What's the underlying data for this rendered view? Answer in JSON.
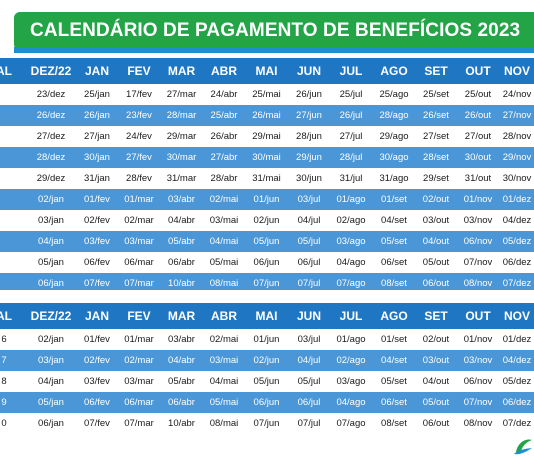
{
  "title": "CALENDÁRIO DE PAGAMENTO DE BENEFÍCIOS 2023",
  "colors": {
    "banner_green": "#22a447",
    "header_blue": "#1f77c4",
    "row_blue": "#4a96d6"
  },
  "table1": {
    "headers": [
      "AL",
      "DEZ/22",
      "JAN",
      "FEV",
      "MAR",
      "ABR",
      "MAI",
      "JUN",
      "JUL",
      "AGO",
      "SET",
      "OUT",
      "NOV"
    ],
    "rows": [
      [
        "",
        "23/dez",
        "25/jan",
        "17/fev",
        "27/mar",
        "24/abr",
        "25/mai",
        "26/jun",
        "25/jul",
        "25/ago",
        "25/set",
        "25/out",
        "24/nov"
      ],
      [
        "",
        "26/dez",
        "26/jan",
        "23/fev",
        "28/mar",
        "25/abr",
        "26/mai",
        "27/jun",
        "26/jul",
        "28/ago",
        "26/set",
        "26/out",
        "27/nov"
      ],
      [
        "",
        "27/dez",
        "27/jan",
        "24/fev",
        "29/mar",
        "26/abr",
        "29/mai",
        "28/jun",
        "27/jul",
        "29/ago",
        "27/set",
        "27/out",
        "28/nov"
      ],
      [
        "",
        "28/dez",
        "30/jan",
        "27/fev",
        "30/mar",
        "27/abr",
        "30/mai",
        "29/jun",
        "28/jul",
        "30/ago",
        "28/set",
        "30/out",
        "29/nov"
      ],
      [
        "",
        "29/dez",
        "31/jan",
        "28/fev",
        "31/mar",
        "28/abr",
        "31/mai",
        "30/jun",
        "31/jul",
        "31/ago",
        "29/set",
        "31/out",
        "30/nov"
      ],
      [
        "",
        "02/jan",
        "01/fev",
        "01/mar",
        "03/abr",
        "02/mai",
        "01/jun",
        "03/jul",
        "01/ago",
        "01/set",
        "02/out",
        "01/nov",
        "01/dez"
      ],
      [
        "",
        "03/jan",
        "02/fev",
        "02/mar",
        "04/abr",
        "03/mai",
        "02/jun",
        "04/jul",
        "02/ago",
        "04/set",
        "03/out",
        "03/nov",
        "04/dez"
      ],
      [
        "",
        "04/jan",
        "03/fev",
        "03/mar",
        "05/abr",
        "04/mai",
        "05/jun",
        "05/jul",
        "03/ago",
        "05/set",
        "04/out",
        "06/nov",
        "05/dez"
      ],
      [
        "",
        "05/jan",
        "06/fev",
        "06/mar",
        "06/abr",
        "05/mai",
        "06/jun",
        "06/jul",
        "04/ago",
        "06/set",
        "05/out",
        "07/nov",
        "06/dez"
      ],
      [
        "",
        "06/jan",
        "07/fev",
        "07/mar",
        "10/abr",
        "08/mai",
        "07/jun",
        "07/jul",
        "07/ago",
        "08/set",
        "06/out",
        "08/nov",
        "07/dez"
      ]
    ]
  },
  "table2": {
    "headers": [
      "AL",
      "DEZ/22",
      "JAN",
      "FEV",
      "MAR",
      "ABR",
      "MAI",
      "JUN",
      "JUL",
      "AGO",
      "SET",
      "OUT",
      "NOV"
    ],
    "rows": [
      [
        "6",
        "02/jan",
        "01/fev",
        "01/mar",
        "03/abr",
        "02/mai",
        "01/jun",
        "03/jul",
        "01/ago",
        "01/set",
        "02/out",
        "01/nov",
        "01/dez"
      ],
      [
        "7",
        "03/jan",
        "02/fev",
        "02/mar",
        "04/abr",
        "03/mai",
        "02/jun",
        "04/jul",
        "02/ago",
        "04/set",
        "03/out",
        "03/nov",
        "04/dez"
      ],
      [
        "8",
        "04/jan",
        "03/fev",
        "03/mar",
        "05/abr",
        "04/mai",
        "05/jun",
        "05/jul",
        "03/ago",
        "05/set",
        "04/out",
        "06/nov",
        "05/dez"
      ],
      [
        "9",
        "05/jan",
        "06/fev",
        "06/mar",
        "06/abr",
        "05/mai",
        "06/jun",
        "06/jul",
        "04/ago",
        "06/set",
        "05/out",
        "07/nov",
        "06/dez"
      ],
      [
        "0",
        "06/jan",
        "07/fev",
        "07/mar",
        "10/abr",
        "08/mai",
        "07/jun",
        "07/jul",
        "07/ago",
        "08/set",
        "06/out",
        "08/nov",
        "07/dez"
      ]
    ]
  }
}
